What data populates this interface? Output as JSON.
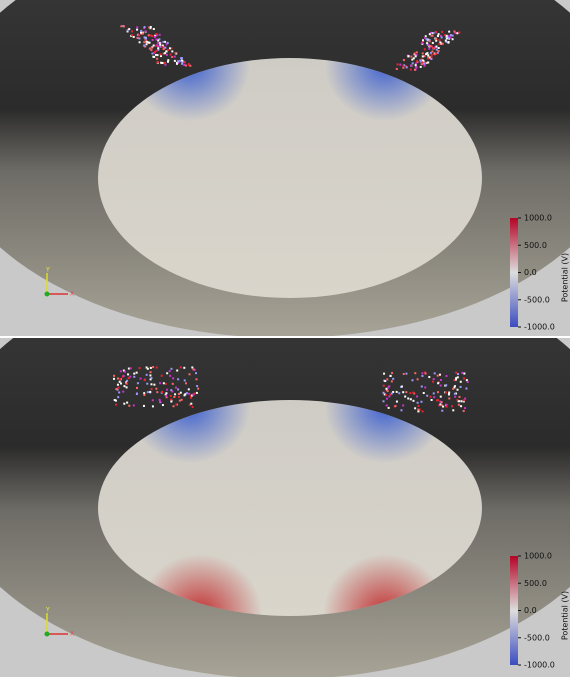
{
  "panels": [
    {
      "colorbar": {
        "title": "Potential (V)",
        "lim": [
          -1000,
          1000
        ],
        "ticks": [
          {
            "value": 1000,
            "label": "1000.0"
          },
          {
            "value": 500,
            "label": "500.0"
          },
          {
            "value": 0,
            "label": "0.0"
          },
          {
            "value": -500,
            "label": "-500.0"
          },
          {
            "value": -1000,
            "label": "-1000.0"
          }
        ]
      },
      "axes_labels": [
        "Y",
        "X"
      ]
    },
    {
      "colorbar": {
        "title": "Potential (V)",
        "lim": [
          -1000,
          1000
        ],
        "ticks": [
          {
            "value": 1000,
            "label": "1000.0"
          },
          {
            "value": 500,
            "label": "500.0"
          },
          {
            "value": 0,
            "label": "0.0"
          },
          {
            "value": -500,
            "label": "-500.0"
          },
          {
            "value": -1000,
            "label": "-1000.0"
          }
        ]
      },
      "axes_labels": [
        "Y",
        "X"
      ]
    }
  ]
}
